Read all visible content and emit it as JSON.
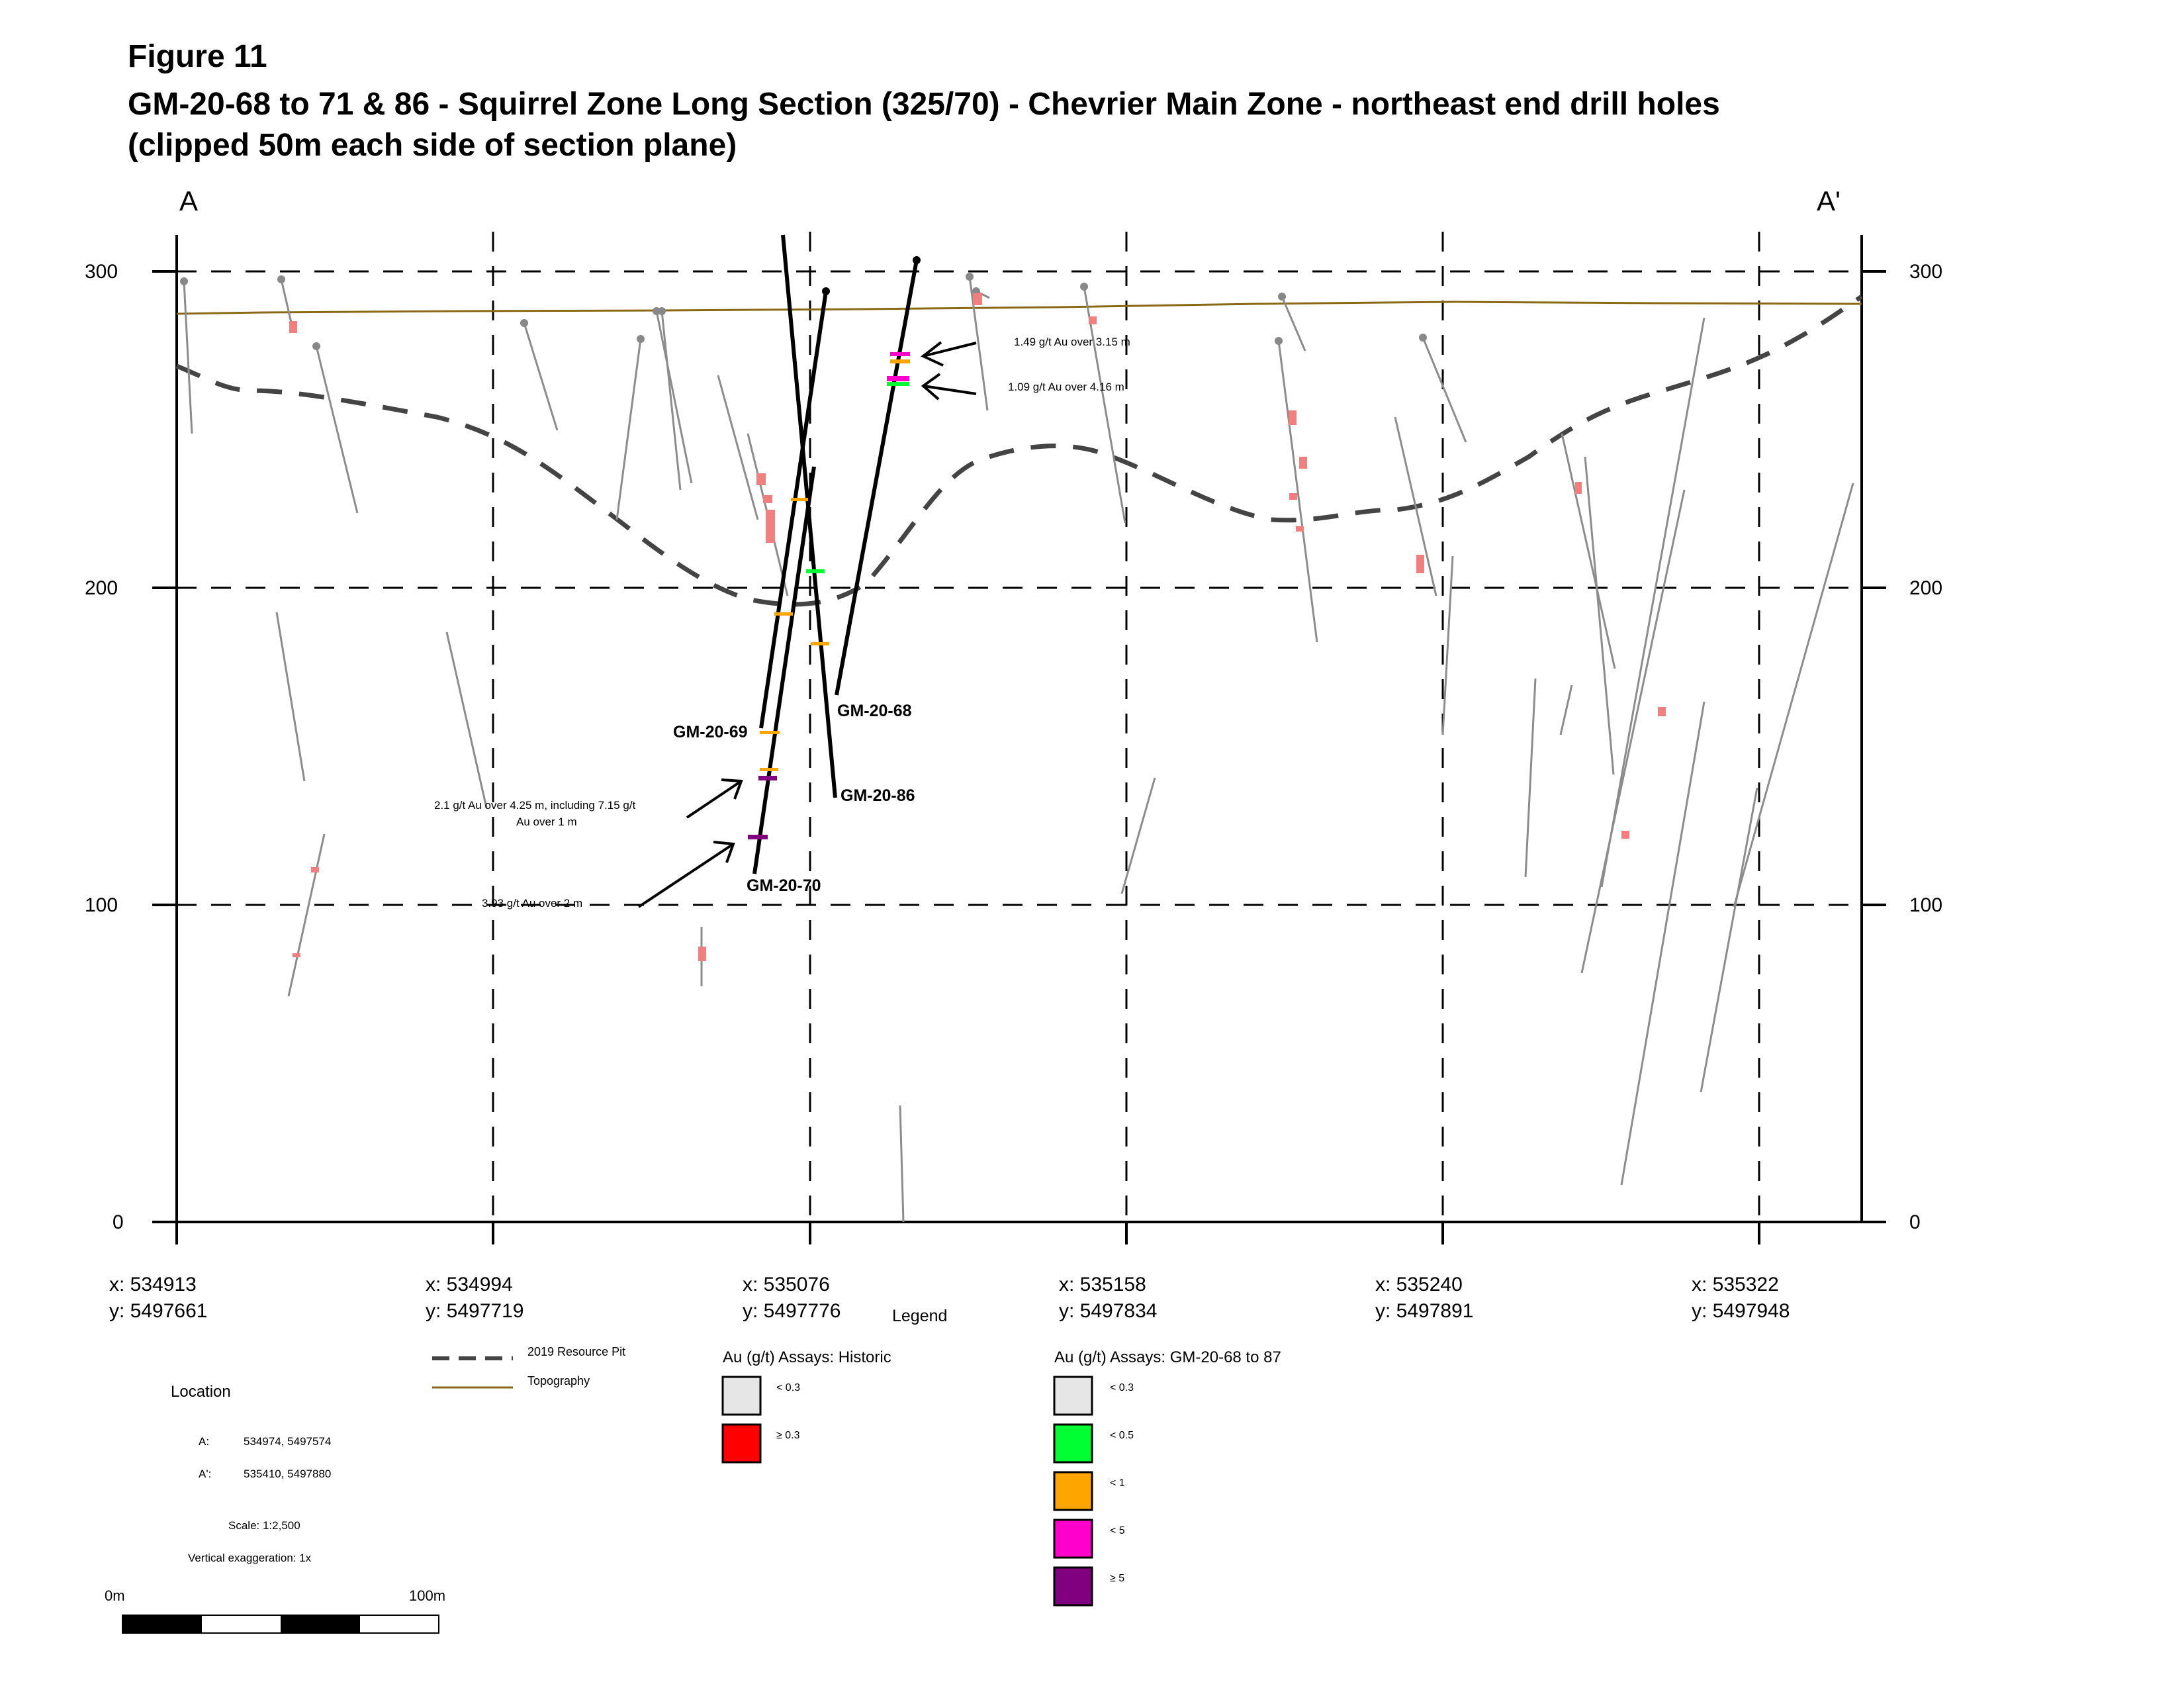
{
  "figure": {
    "label": "Figure 11",
    "title_line1": "GM-20-68 to 71 & 86 - Squirrel Zone Long Section (325/70) - Chevrier Main Zone - northeast end drill holes",
    "title_line2": "(clipped 50m each side of section plane)"
  },
  "section": {
    "end_left": "A",
    "end_right": "A'",
    "elevation_ticks": [
      "300",
      "200",
      "100",
      "0"
    ],
    "x_ticks": [
      {
        "x": "x: 534913",
        "y": "y: 5497661"
      },
      {
        "x": "x: 534994",
        "y": "y: 5497719"
      },
      {
        "x": "x: 535076",
        "y": "y: 5497776"
      },
      {
        "x": "x: 535158",
        "y": "y: 5497834"
      },
      {
        "x": "x: 535240",
        "y": "y: 5497891"
      },
      {
        "x": "x: 535322",
        "y": "y: 5497948"
      }
    ]
  },
  "drill_holes": [
    "GM-20-68",
    "GM-20-69",
    "GM-20-86",
    "GM-20-70"
  ],
  "annotations": [
    "1.49 g/t Au over 3.15 m",
    "1.09 g/t Au over 4.16 m",
    "2.1 g/t Au over 4.25 m, including 7.15 g/t",
    "Au over 1 m",
    "3.93 g/t Au over 2 m"
  ],
  "legend": {
    "title": "Legend",
    "pit_label": "2019 Resource Pit",
    "topo_label": "Topography",
    "historic_title": "Au (g/t) Assays: Historic",
    "historic_items": [
      {
        "label": "< 0.3",
        "color": "#e6e6e6"
      },
      {
        "label": "≥ 0.3",
        "color": "#ff0000"
      }
    ],
    "new_title": "Au (g/t) Assays: GM-20-68 to 87",
    "new_items": [
      {
        "label": "< 0.3",
        "color": "#e6e6e6"
      },
      {
        "label": "< 0.5",
        "color": "#00ff33"
      },
      {
        "label": "< 1",
        "color": "#ffa500"
      },
      {
        "label": "< 5",
        "color": "#ff00cc"
      },
      {
        "label": "≥ 5",
        "color": "#800080"
      }
    ]
  },
  "location": {
    "heading": "Location",
    "a_label": "A:",
    "a_value": "534974, 5497574",
    "a2_label": "A':",
    "a2_value": "535410, 5497880",
    "scale": "Scale: 1:2,500",
    "exaggeration": "Vertical exaggeration: 1x",
    "bar_start": "0m",
    "bar_end": "100m"
  },
  "colors": {
    "topography": "#8b6914",
    "pit": "#444444",
    "historic_hole": "#8c8c8c",
    "assay_historic": "#f08080"
  }
}
